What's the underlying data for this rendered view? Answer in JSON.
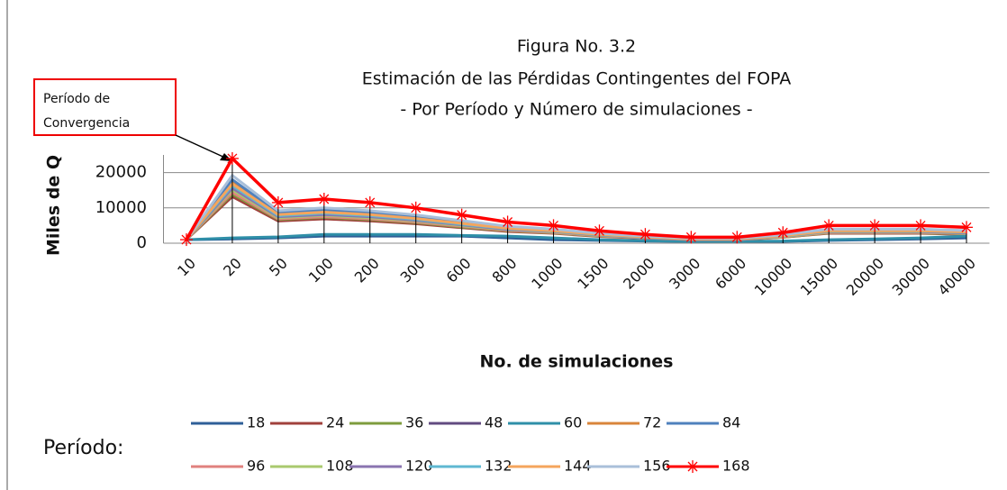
{
  "chart_data": {
    "type": "line",
    "title": [
      "Figura No. 3.2",
      "Estimación de las Pérdidas Contingentes del FOPA",
      "- Por Período y Número de simulaciones -"
    ],
    "x_label": "No. de simulaciones",
    "y_label": "Miles de Q",
    "legend_title": "Período:",
    "annotation": [
      "Período de",
      "Convergencia"
    ],
    "categories": [
      "10",
      "20",
      "50",
      "100",
      "200",
      "300",
      "600",
      "800",
      "1000",
      "1500",
      "2000",
      "3000",
      "6000",
      "10000",
      "15000",
      "20000",
      "30000",
      "40000"
    ],
    "ylim": [
      0,
      25000
    ],
    "yticks": [
      0,
      10000,
      20000
    ],
    "grid": true,
    "drop_lines": true,
    "series": [
      {
        "name": "18",
        "color": "#2f5f98",
        "values": [
          1000,
          1200,
          1500,
          2000,
          2000,
          2000,
          2000,
          1500,
          1000,
          800,
          600,
          500,
          500,
          500,
          800,
          1000,
          1200,
          1500
        ]
      },
      {
        "name": "24",
        "color": "#a0413c",
        "values": [
          1000,
          13200,
          6300,
          6900,
          6300,
          5500,
          4400,
          3300,
          2800,
          1900,
          1400,
          900,
          900,
          1700,
          2800,
          2800,
          2800,
          2500
        ]
      },
      {
        "name": "36",
        "color": "#7e9c3e",
        "values": [
          1000,
          13900,
          6700,
          7300,
          6700,
          5800,
          4600,
          3500,
          2900,
          2000,
          1500,
          1000,
          1000,
          1700,
          2900,
          2900,
          2900,
          2600
        ]
      },
      {
        "name": "48",
        "color": "#624b80",
        "values": [
          1000,
          14900,
          7100,
          7800,
          7100,
          6200,
          5000,
          3700,
          3100,
          2200,
          1600,
          1100,
          1100,
          1900,
          3100,
          3100,
          3100,
          2800
        ]
      },
      {
        "name": "60",
        "color": "#2f8fa8",
        "values": [
          1000,
          1500,
          1800,
          2500,
          2500,
          2500,
          2200,
          2000,
          1500,
          1000,
          700,
          500,
          500,
          600,
          1000,
          1200,
          1500,
          2000
        ]
      },
      {
        "name": "72",
        "color": "#d9853b",
        "values": [
          1000,
          17300,
          8300,
          9000,
          8300,
          7200,
          5800,
          4300,
          3600,
          2500,
          1800,
          1200,
          1200,
          2200,
          3600,
          3600,
          3600,
          3200
        ]
      },
      {
        "name": "84",
        "color": "#4f81bd",
        "values": [
          1000,
          18000,
          8600,
          9400,
          8600,
          7500,
          6000,
          4500,
          3800,
          2600,
          1900,
          1300,
          1300,
          2300,
          3800,
          3800,
          3800,
          3400
        ]
      },
      {
        "name": "96",
        "color": "#e0817e",
        "values": [
          1000,
          14400,
          6900,
          7500,
          6900,
          6000,
          4800,
          3600,
          3000,
          2100,
          1500,
          1000,
          1000,
          1800,
          3000,
          3000,
          3000,
          2700
        ]
      },
      {
        "name": "108",
        "color": "#a9c96e",
        "values": [
          1000,
          15100,
          7200,
          7900,
          7200,
          6300,
          5000,
          3800,
          3200,
          2200,
          1600,
          1100,
          1100,
          1900,
          3200,
          3200,
          3200,
          2800
        ]
      },
      {
        "name": "120",
        "color": "#8a74b0",
        "values": [
          1000,
          15600,
          7500,
          8100,
          7500,
          6500,
          5200,
          3900,
          3300,
          2300,
          1600,
          1100,
          1100,
          2000,
          3300,
          3300,
          3300,
          2900
        ]
      },
      {
        "name": "132",
        "color": "#5fb8d2",
        "values": [
          1000,
          16300,
          7800,
          8500,
          7800,
          6800,
          5400,
          4100,
          3400,
          2400,
          1700,
          1200,
          1200,
          2000,
          3400,
          3400,
          3400,
          3100
        ]
      },
      {
        "name": "144",
        "color": "#f5a55c",
        "values": [
          1000,
          16800,
          8100,
          8800,
          8100,
          7000,
          5600,
          4200,
          3500,
          2500,
          1800,
          1200,
          1200,
          2100,
          3500,
          3500,
          3500,
          3200
        ]
      },
      {
        "name": "156",
        "color": "#a9bfd9",
        "values": [
          1000,
          19200,
          9200,
          10000,
          9200,
          8000,
          6400,
          4800,
          4000,
          2800,
          2000,
          1400,
          1400,
          2400,
          4000,
          4000,
          4000,
          3600
        ]
      },
      {
        "name": "168",
        "color": "#ff0000",
        "marker": "asterisk",
        "values": [
          1000,
          24000,
          11500,
          12500,
          11500,
          10000,
          8000,
          6000,
          5000,
          3500,
          2500,
          1700,
          1700,
          3000,
          5000,
          5000,
          5000,
          4500
        ]
      }
    ]
  }
}
